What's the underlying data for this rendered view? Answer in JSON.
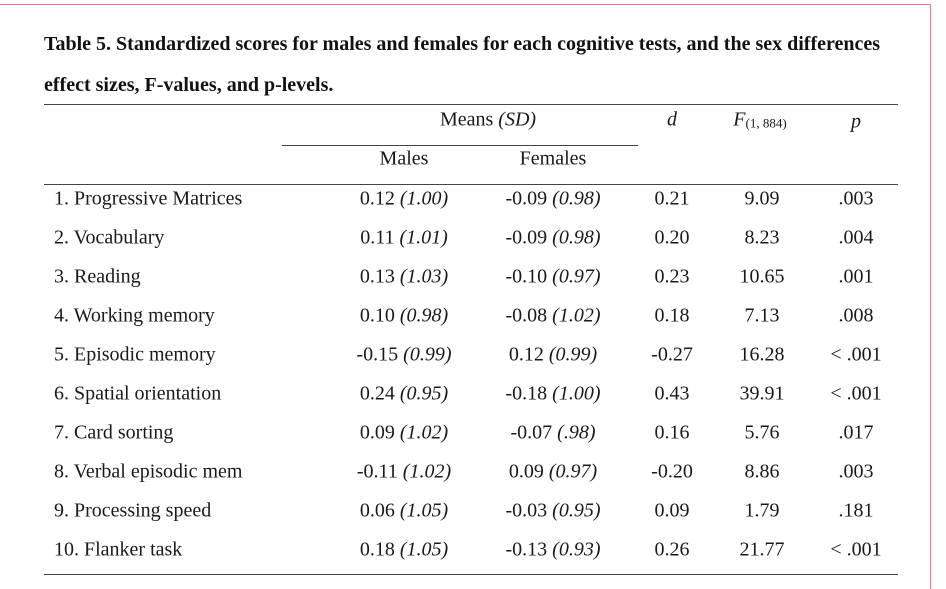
{
  "caption": "Table 5. Standardized scores for males and females for each cognitive tests, and the sex differences effect sizes, F-values, and p-levels.",
  "header": {
    "means_label": "Means",
    "means_sd": "(SD)",
    "males": "Males",
    "females": "Females",
    "d": "d",
    "F": "F",
    "F_sub": "(1, 884)",
    "p": "p"
  },
  "rows": [
    {
      "test": "1. Progressive Matrices",
      "m": "0.12",
      "msd": "(1.00)",
      "f": "-0.09",
      "fsd": "(0.98)",
      "d": "0.21",
      "F": "9.09",
      "p": ".003"
    },
    {
      "test": "2. Vocabulary",
      "m": "0.11",
      "msd": "(1.01)",
      "f": "-0.09",
      "fsd": "(0.98)",
      "d": "0.20",
      "F": "8.23",
      "p": ".004"
    },
    {
      "test": "3. Reading",
      "m": "0.13",
      "msd": "(1.03)",
      "f": "-0.10",
      "fsd": "(0.97)",
      "d": "0.23",
      "F": "10.65",
      "p": ".001"
    },
    {
      "test": "4. Working memory",
      "m": "0.10",
      "msd": "(0.98)",
      "f": "-0.08",
      "fsd": "(1.02)",
      "d": "0.18",
      "F": "7.13",
      "p": ".008"
    },
    {
      "test": "5. Episodic memory",
      "m": "-0.15",
      "msd": "(0.99)",
      "f": "0.12",
      "fsd": "(0.99)",
      "d": "-0.27",
      "F": "16.28",
      "p": "< .001"
    },
    {
      "test": "6. Spatial orientation",
      "m": "0.24",
      "msd": "(0.95)",
      "f": "-0.18",
      "fsd": "(1.00)",
      "d": "0.43",
      "F": "39.91",
      "p": "< .001"
    },
    {
      "test": "7. Card sorting",
      "m": "0.09",
      "msd": "(1.02)",
      "f": "-0.07",
      "fsd": "(.98)",
      "d": "0.16",
      "F": "5.76",
      "p": ".017"
    },
    {
      "test": "8. Verbal episodic mem",
      "m": "-0.11",
      "msd": "(1.02)",
      "f": "0.09",
      "fsd": "(0.97)",
      "d": "-0.20",
      "F": "8.86",
      "p": ".003"
    },
    {
      "test": "9. Processing speed",
      "m": "0.06",
      "msd": "(1.05)",
      "f": "-0.03",
      "fsd": "(0.95)",
      "d": "0.09",
      "F": "1.79",
      "p": ".181"
    },
    {
      "test": "10. Flanker task",
      "m": "0.18",
      "msd": "(1.05)",
      "f": "-0.13",
      "fsd": "(0.93)",
      "d": "0.26",
      "F": "21.77",
      "p": "< .001"
    }
  ]
}
